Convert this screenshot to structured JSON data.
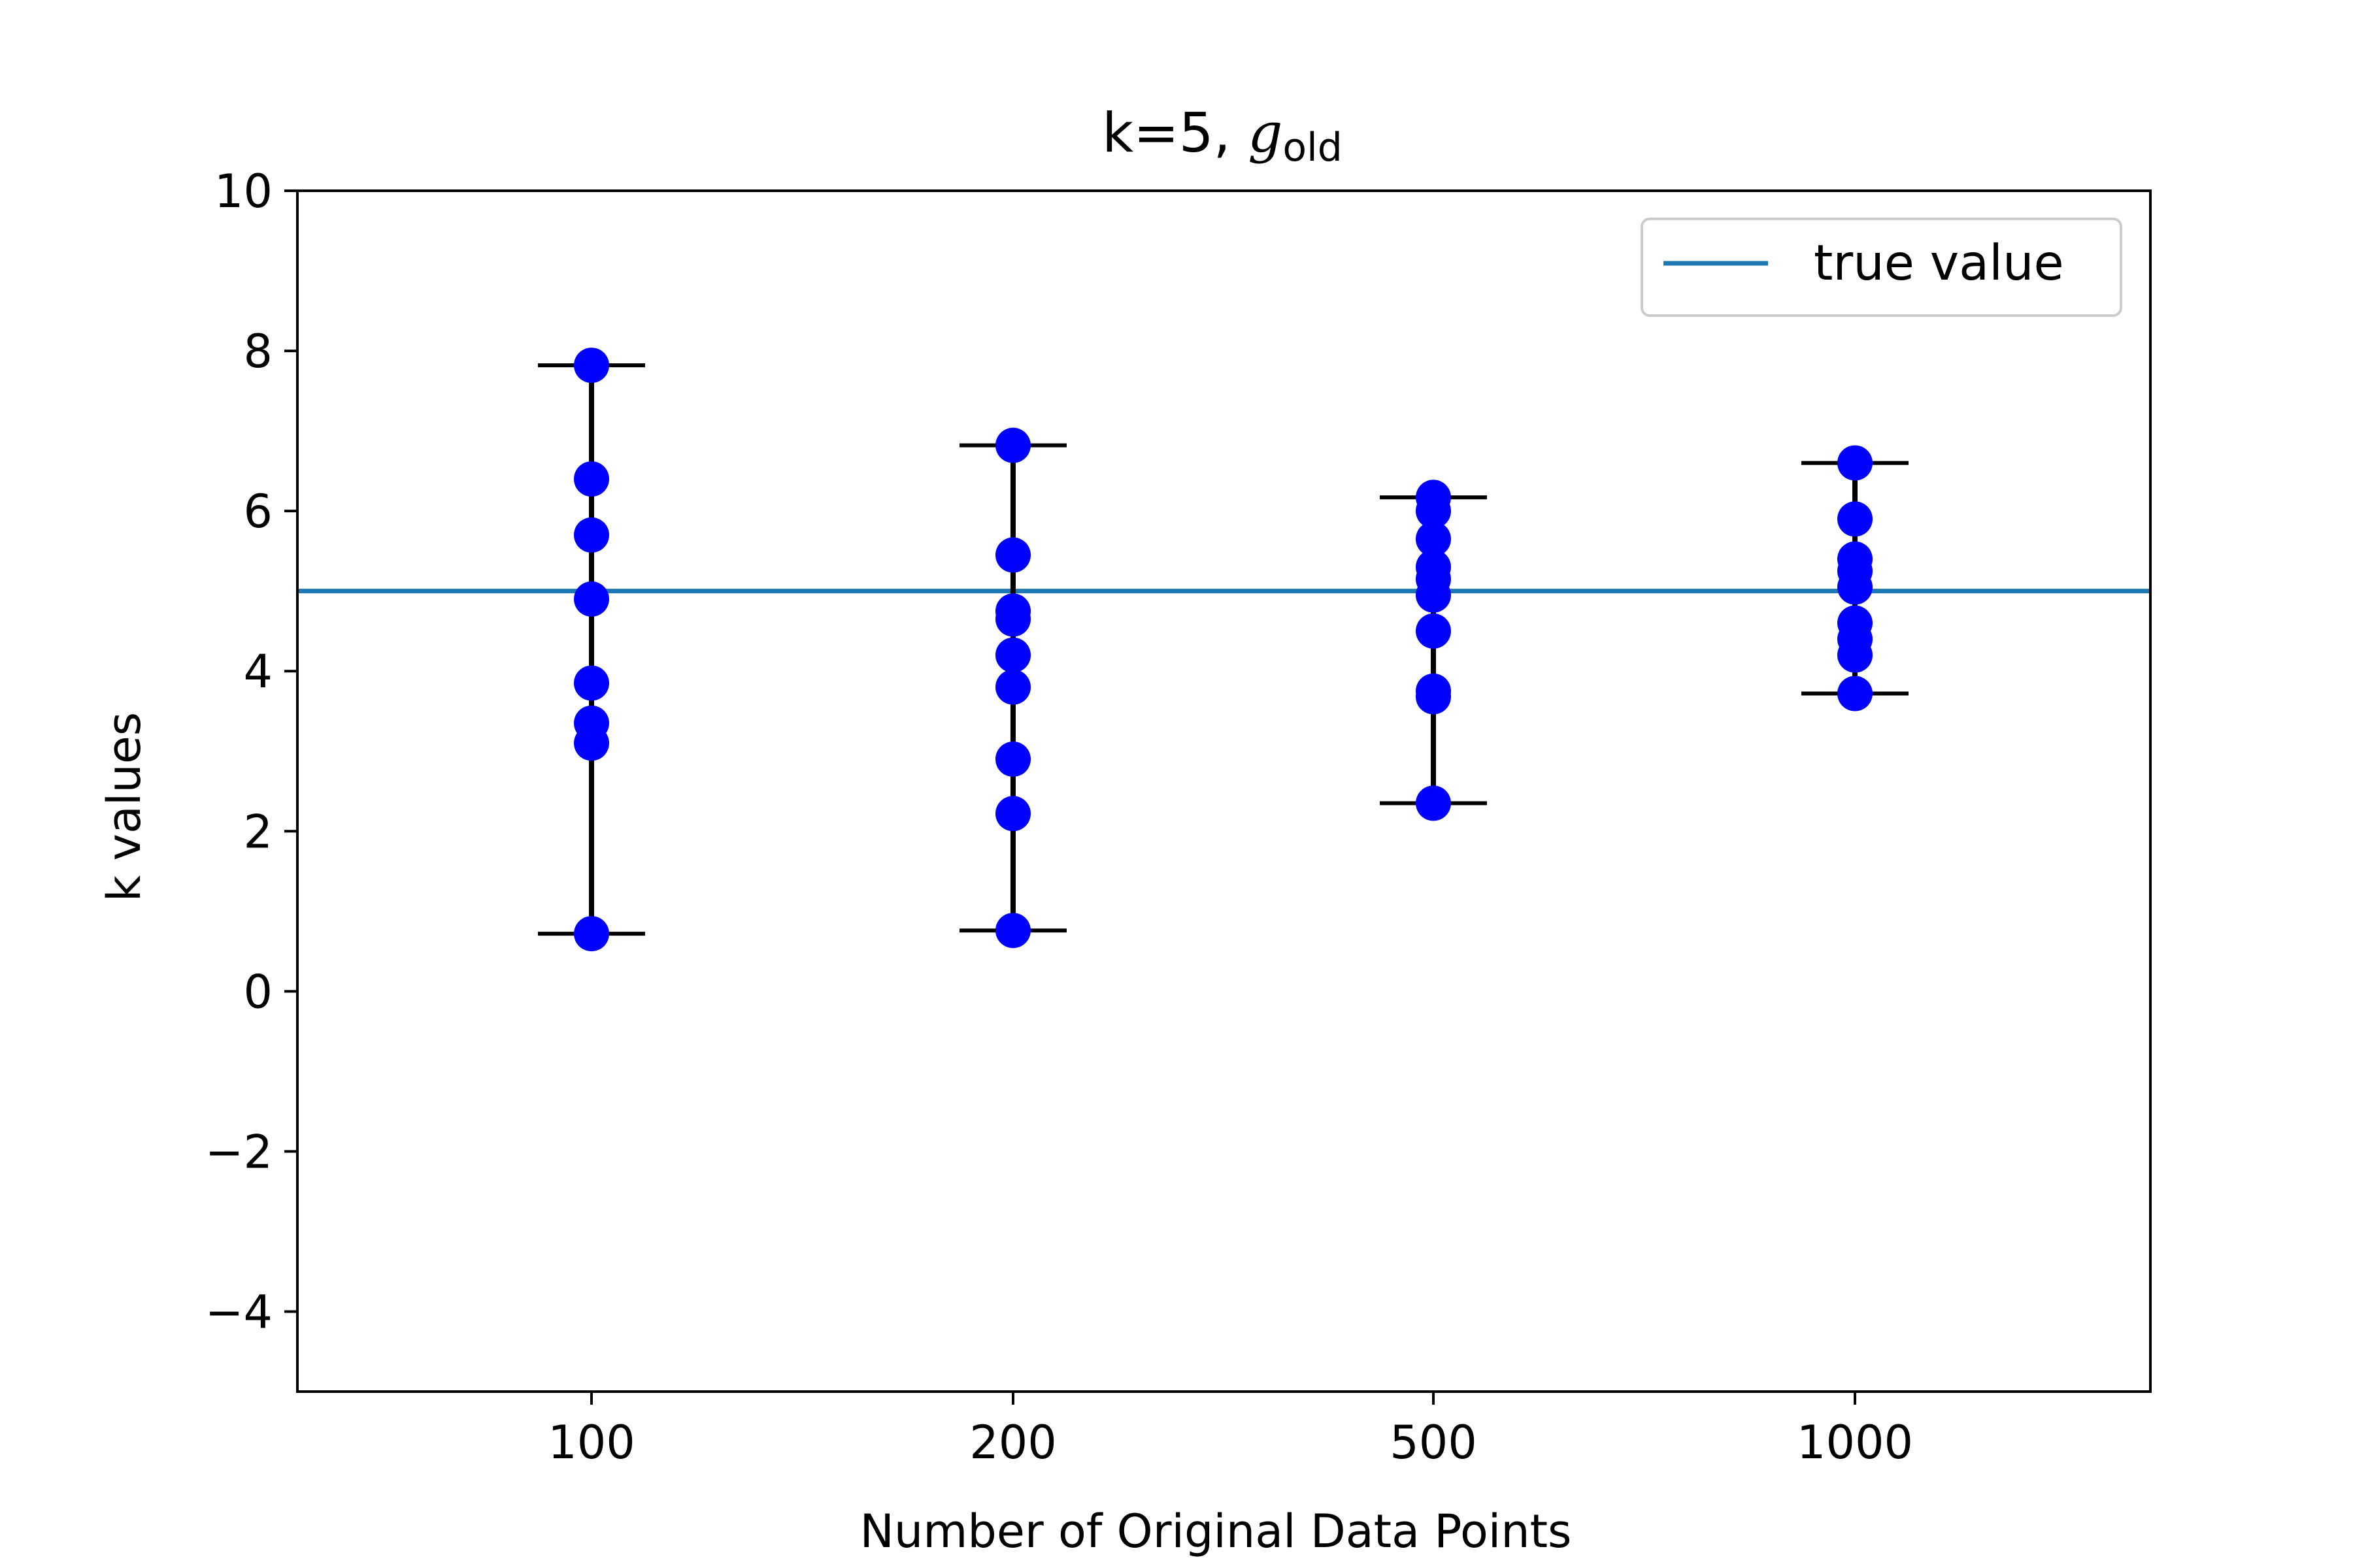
{
  "chart_data": {
    "type": "scatter",
    "title": {
      "prefix": "k=5, ",
      "symbol": "g",
      "subscript": "old"
    },
    "xlabel": "Number of Original Data Points",
    "ylabel": "k values",
    "categories": [
      "100",
      "200",
      "500",
      "1000"
    ],
    "ylim": [
      -5,
      10
    ],
    "yticks": [
      -4,
      -2,
      0,
      2,
      4,
      6,
      8,
      10
    ],
    "ytick_labels": [
      "−4",
      "−2",
      "0",
      "2",
      "4",
      "6",
      "8",
      "10"
    ],
    "grid": false,
    "legend": {
      "position": "top-right",
      "entries": [
        "true value"
      ]
    },
    "reference_line": {
      "name": "true value",
      "y": 5,
      "color": "#1f77b4"
    },
    "series": [
      {
        "category": "100",
        "points": [
          7.82,
          6.4,
          5.7,
          4.9,
          3.85,
          3.35,
          3.1,
          0.72
        ],
        "error_bar": [
          0.72,
          7.82
        ]
      },
      {
        "category": "200",
        "points": [
          6.82,
          5.45,
          4.75,
          4.65,
          4.2,
          3.8,
          2.9,
          2.22,
          0.76
        ],
        "error_bar": [
          0.76,
          6.82
        ]
      },
      {
        "category": "500",
        "points": [
          6.17,
          6.0,
          5.65,
          5.3,
          5.15,
          4.95,
          4.5,
          3.75,
          3.68,
          2.35
        ],
        "error_bar": [
          2.35,
          6.17
        ]
      },
      {
        "category": "1000",
        "points": [
          6.6,
          5.9,
          5.4,
          5.25,
          5.05,
          4.6,
          4.4,
          4.2,
          3.72
        ],
        "error_bar": [
          3.72,
          6.6
        ]
      }
    ],
    "colors": {
      "points": "#0000ff",
      "error_bars": "#000000",
      "reference_line": "#1f77b4"
    }
  }
}
